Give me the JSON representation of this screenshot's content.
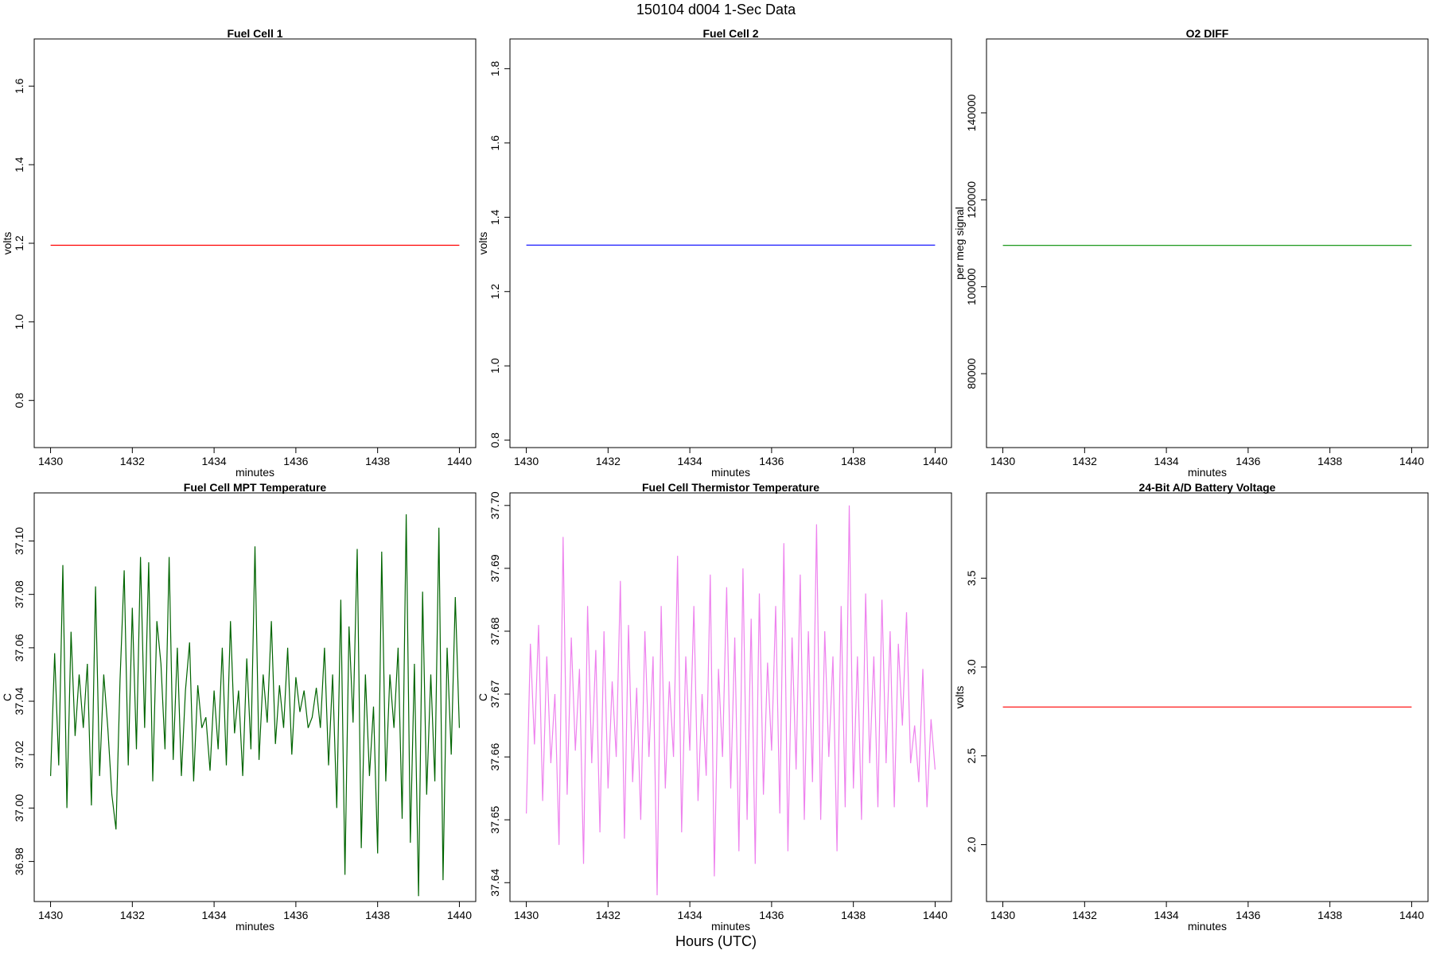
{
  "figure": {
    "title": "150104   d004   1-Sec Data",
    "xlabel": "Hours (UTC)"
  },
  "chart_data": [
    {
      "type": "line",
      "title": "Fuel Cell 1",
      "xlabel": "minutes",
      "ylabel": "volts",
      "color": "#ff0000",
      "xlim": [
        1429.6,
        1440.4
      ],
      "ylim": [
        0.68,
        1.72
      ],
      "xticks": [
        "1430",
        "1432",
        "1434",
        "1436",
        "1438",
        "1440"
      ],
      "yticks": [
        "0.8",
        "1.0",
        "1.2",
        "1.4",
        "1.6"
      ],
      "x": [
        1430,
        1440
      ],
      "y": [
        1.195,
        1.195
      ]
    },
    {
      "type": "line",
      "title": "Fuel Cell 2",
      "xlabel": "minutes",
      "ylabel": "volts",
      "color": "#0000ff",
      "xlim": [
        1429.6,
        1440.4
      ],
      "ylim": [
        0.78,
        1.88
      ],
      "xticks": [
        "1430",
        "1432",
        "1434",
        "1436",
        "1438",
        "1440"
      ],
      "yticks": [
        "0.8",
        "1.0",
        "1.2",
        "1.4",
        "1.6",
        "1.8"
      ],
      "x": [
        1430,
        1440
      ],
      "y": [
        1.325,
        1.325
      ]
    },
    {
      "type": "line",
      "title": "O2 DIFF",
      "xlabel": "minutes",
      "ylabel": "per meg signal",
      "color": "#008b00",
      "xlim": [
        1429.6,
        1440.4
      ],
      "ylim": [
        63000,
        157000
      ],
      "xticks": [
        "1430",
        "1432",
        "1434",
        "1436",
        "1438",
        "1440"
      ],
      "yticks": [
        "80000",
        "100000",
        "120000",
        "140000"
      ],
      "x": [
        1430,
        1440
      ],
      "y": [
        109500,
        109500
      ]
    },
    {
      "type": "line",
      "title": "Fuel Cell MPT Temperature",
      "xlabel": "minutes",
      "ylabel": "C",
      "color": "#006400",
      "xlim": [
        1429.6,
        1440.4
      ],
      "ylim": [
        36.965,
        37.118
      ],
      "xticks": [
        "1430",
        "1432",
        "1434",
        "1436",
        "1438",
        "1440"
      ],
      "yticks": [
        "36.98",
        "37.00",
        "37.02",
        "37.04",
        "37.06",
        "37.08",
        "37.10"
      ],
      "x": [
        1430.0,
        1430.1,
        1430.2,
        1430.3,
        1430.4,
        1430.5,
        1430.6,
        1430.7,
        1430.8,
        1430.9,
        1431.0,
        1431.1,
        1431.2,
        1431.3,
        1431.4,
        1431.5,
        1431.6,
        1431.7,
        1431.8,
        1431.9,
        1432.0,
        1432.1,
        1432.2,
        1432.3,
        1432.4,
        1432.5,
        1432.6,
        1432.7,
        1432.8,
        1432.9,
        1433.0,
        1433.1,
        1433.2,
        1433.3,
        1433.4,
        1433.5,
        1433.6,
        1433.7,
        1433.8,
        1433.9,
        1434.0,
        1434.1,
        1434.2,
        1434.3,
        1434.4,
        1434.5,
        1434.6,
        1434.7,
        1434.8,
        1434.9,
        1435.0,
        1435.1,
        1435.2,
        1435.3,
        1435.4,
        1435.5,
        1435.6,
        1435.7,
        1435.8,
        1435.9,
        1436.0,
        1436.1,
        1436.2,
        1436.3,
        1436.4,
        1436.5,
        1436.6,
        1436.7,
        1436.8,
        1436.9,
        1437.0,
        1437.1,
        1437.2,
        1437.3,
        1437.4,
        1437.5,
        1437.6,
        1437.7,
        1437.8,
        1437.9,
        1438.0,
        1438.1,
        1438.2,
        1438.3,
        1438.4,
        1438.5,
        1438.6,
        1438.7,
        1438.8,
        1438.9,
        1439.0,
        1439.1,
        1439.2,
        1439.3,
        1439.4,
        1439.5,
        1439.6,
        1439.7,
        1439.8,
        1439.9,
        1440.0
      ],
      "y": [
        37.012,
        37.058,
        37.016,
        37.091,
        37.0,
        37.066,
        37.027,
        37.05,
        37.03,
        37.054,
        37.001,
        37.083,
        37.012,
        37.05,
        37.03,
        37.005,
        36.992,
        37.048,
        37.089,
        37.016,
        37.075,
        37.022,
        37.094,
        37.03,
        37.092,
        37.01,
        37.07,
        37.054,
        37.022,
        37.094,
        37.018,
        37.06,
        37.012,
        37.044,
        37.062,
        37.01,
        37.046,
        37.03,
        37.034,
        37.014,
        37.044,
        37.022,
        37.06,
        37.016,
        37.07,
        37.028,
        37.044,
        37.012,
        37.056,
        37.022,
        37.098,
        37.018,
        37.05,
        37.032,
        37.07,
        37.024,
        37.046,
        37.03,
        37.06,
        37.02,
        37.049,
        37.036,
        37.044,
        37.03,
        37.034,
        37.045,
        37.03,
        37.06,
        37.016,
        37.05,
        37.0,
        37.078,
        36.975,
        37.068,
        37.032,
        37.097,
        36.985,
        37.05,
        37.012,
        37.038,
        36.983,
        37.096,
        37.01,
        37.05,
        37.03,
        37.06,
        36.996,
        37.11,
        36.987,
        37.054,
        36.967,
        37.081,
        37.005,
        37.05,
        37.01,
        37.105,
        36.973,
        37.06,
        37.02,
        37.079,
        37.03
      ]
    },
    {
      "type": "line",
      "title": "Fuel Cell Thermistor Temperature",
      "xlabel": "minutes",
      "ylabel": "C",
      "color": "#ee82ee",
      "xlim": [
        1429.6,
        1440.4
      ],
      "ylim": [
        37.637,
        37.702
      ],
      "xticks": [
        "1430",
        "1432",
        "1434",
        "1436",
        "1438",
        "1440"
      ],
      "yticks": [
        "37.64",
        "37.65",
        "37.66",
        "37.67",
        "37.68",
        "37.69",
        "37.70"
      ],
      "x": [
        1430.0,
        1430.1,
        1430.2,
        1430.3,
        1430.4,
        1430.5,
        1430.6,
        1430.7,
        1430.8,
        1430.9,
        1431.0,
        1431.1,
        1431.2,
        1431.3,
        1431.4,
        1431.5,
        1431.6,
        1431.7,
        1431.8,
        1431.9,
        1432.0,
        1432.1,
        1432.2,
        1432.3,
        1432.4,
        1432.5,
        1432.6,
        1432.7,
        1432.8,
        1432.9,
        1433.0,
        1433.1,
        1433.2,
        1433.3,
        1433.4,
        1433.5,
        1433.6,
        1433.7,
        1433.8,
        1433.9,
        1434.0,
        1434.1,
        1434.2,
        1434.3,
        1434.4,
        1434.5,
        1434.6,
        1434.7,
        1434.8,
        1434.9,
        1435.0,
        1435.1,
        1435.2,
        1435.3,
        1435.4,
        1435.5,
        1435.6,
        1435.7,
        1435.8,
        1435.9,
        1436.0,
        1436.1,
        1436.2,
        1436.3,
        1436.4,
        1436.5,
        1436.6,
        1436.7,
        1436.8,
        1436.9,
        1437.0,
        1437.1,
        1437.2,
        1437.3,
        1437.4,
        1437.5,
        1437.6,
        1437.7,
        1437.8,
        1437.9,
        1438.0,
        1438.1,
        1438.2,
        1438.3,
        1438.4,
        1438.5,
        1438.6,
        1438.7,
        1438.8,
        1438.9,
        1439.0,
        1439.1,
        1439.2,
        1439.3,
        1439.4,
        1439.5,
        1439.6,
        1439.7,
        1439.8,
        1439.9,
        1440.0
      ],
      "y": [
        37.651,
        37.678,
        37.662,
        37.681,
        37.653,
        37.676,
        37.659,
        37.67,
        37.646,
        37.695,
        37.654,
        37.679,
        37.661,
        37.674,
        37.643,
        37.684,
        37.659,
        37.677,
        37.648,
        37.68,
        37.655,
        37.672,
        37.66,
        37.688,
        37.647,
        37.681,
        37.656,
        37.671,
        37.65,
        37.68,
        37.66,
        37.676,
        37.638,
        37.684,
        37.655,
        37.672,
        37.66,
        37.692,
        37.648,
        37.676,
        37.661,
        37.684,
        37.653,
        37.67,
        37.657,
        37.689,
        37.641,
        37.674,
        37.66,
        37.687,
        37.655,
        37.679,
        37.645,
        37.69,
        37.65,
        37.682,
        37.643,
        37.686,
        37.654,
        37.675,
        37.661,
        37.684,
        37.651,
        37.694,
        37.645,
        37.679,
        37.658,
        37.689,
        37.65,
        37.68,
        37.656,
        37.697,
        37.65,
        37.68,
        37.66,
        37.676,
        37.645,
        37.684,
        37.652,
        37.7,
        37.655,
        37.676,
        37.65,
        37.686,
        37.659,
        37.676,
        37.652,
        37.685,
        37.659,
        37.68,
        37.652,
        37.678,
        37.665,
        37.683,
        37.659,
        37.665,
        37.656,
        37.674,
        37.652,
        37.666,
        37.658
      ]
    },
    {
      "type": "line",
      "title": "24-Bit A/D Battery Voltage",
      "xlabel": "minutes",
      "ylabel": "volts",
      "color": "#ff0000",
      "xlim": [
        1429.6,
        1440.4
      ],
      "ylim": [
        1.68,
        3.98
      ],
      "xticks": [
        "1430",
        "1432",
        "1434",
        "1436",
        "1438",
        "1440"
      ],
      "yticks": [
        "2.0",
        "2.5",
        "3.0",
        "3.5"
      ],
      "x": [
        1430,
        1440
      ],
      "y": [
        2.775,
        2.775
      ]
    }
  ]
}
